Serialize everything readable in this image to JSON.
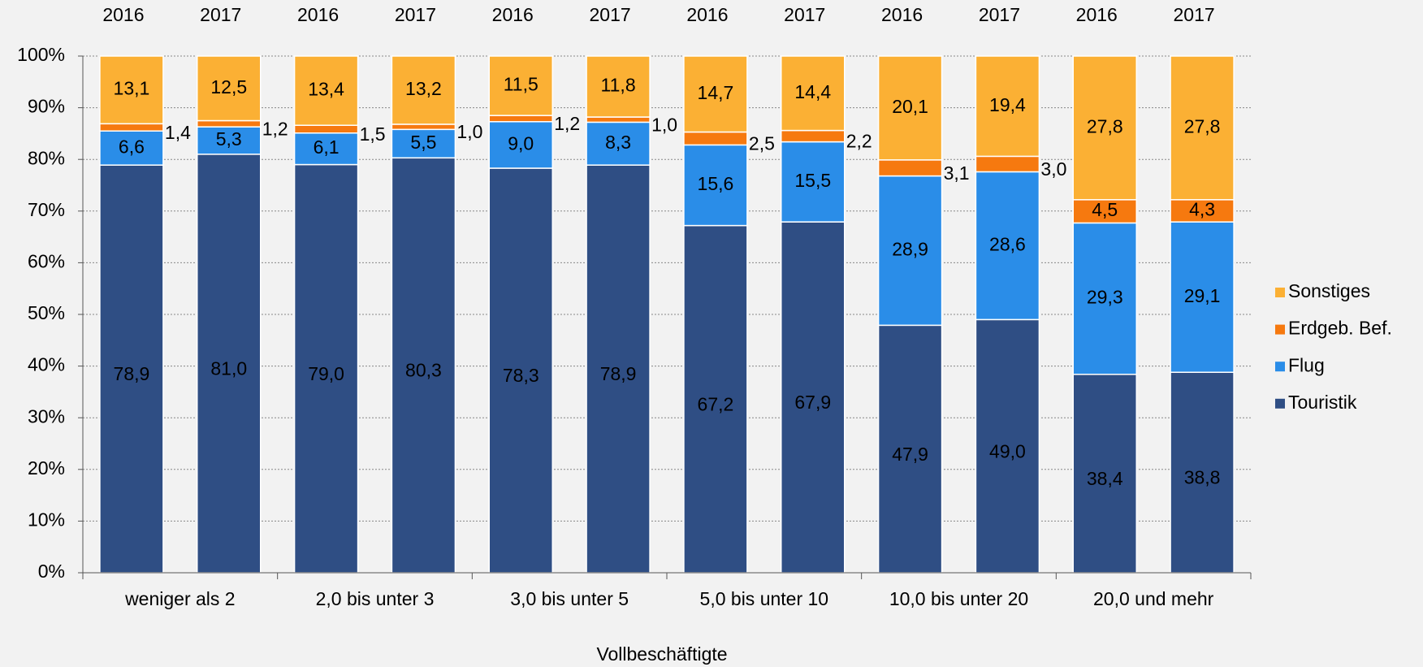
{
  "chart_data": {
    "type": "stacked_bar",
    "x_label": "Vollbeschäftigte",
    "categories": [
      "2016",
      "2017",
      "2016",
      "2017",
      "2016",
      "2017",
      "2016",
      "2017",
      "2016",
      "2017",
      "2016",
      "2017"
    ],
    "groups": [
      "weniger als 2",
      "2,0 bis unter 3",
      "3,0 bis unter 5",
      "5,0 bis unter 10",
      "10,0 bis unter 20",
      "20,0 und mehr"
    ],
    "series": [
      {
        "name": "Touristik",
        "color": "#2f4e84",
        "values": [
          78.9,
          81.0,
          79.0,
          80.3,
          78.3,
          78.9,
          67.2,
          67.9,
          47.9,
          49.0,
          38.4,
          38.8
        ],
        "value_labels": [
          "78,9",
          "81,0",
          "79,0",
          "80,3",
          "78,3",
          "78,9",
          "67,2",
          "67,9",
          "47,9",
          "49,0",
          "38,4",
          "38,8"
        ]
      },
      {
        "name": "Flug",
        "color": "#2a8de8",
        "values": [
          6.6,
          5.3,
          6.1,
          5.5,
          9.0,
          8.3,
          15.6,
          15.5,
          28.9,
          28.6,
          29.3,
          29.1
        ],
        "value_labels": [
          "6,6",
          "5,3",
          "6,1",
          "5,5",
          "9,0",
          "8,3",
          "15,6",
          "15,5",
          "28,9",
          "28,6",
          "29,3",
          "29,1"
        ]
      },
      {
        "name": "Erdgeb. Bef.",
        "color": "#f6790f",
        "values": [
          1.4,
          1.2,
          1.5,
          1.0,
          1.2,
          1.0,
          2.5,
          2.2,
          3.1,
          3.0,
          4.5,
          4.3
        ],
        "value_labels": [
          "1,4",
          "1,2",
          "1,5",
          "1,0",
          "1,2",
          "1,0",
          "2,5",
          "2,2",
          "3,1",
          "3,0",
          "4,5",
          "4,3"
        ]
      },
      {
        "name": "Sonstiges",
        "color": "#fbb034",
        "values": [
          13.1,
          12.5,
          13.4,
          13.2,
          11.5,
          11.8,
          14.7,
          14.4,
          20.1,
          19.4,
          27.8,
          27.8
        ],
        "value_labels": [
          "13,1",
          "12,5",
          "13,4",
          "13,2",
          "11,5",
          "11,8",
          "14,7",
          "14,4",
          "20,1",
          "19,4",
          "27,8",
          "27,8"
        ]
      }
    ],
    "ylim": [
      0,
      100
    ],
    "yticks": [
      {
        "value": 0,
        "label": "0%"
      },
      {
        "value": 10,
        "label": "10%"
      },
      {
        "value": 20,
        "label": "20%"
      },
      {
        "value": 30,
        "label": "30%"
      },
      {
        "value": 40,
        "label": "40%"
      },
      {
        "value": 50,
        "label": "50%"
      },
      {
        "value": 60,
        "label": "60%"
      },
      {
        "value": 70,
        "label": "70%"
      },
      {
        "value": 80,
        "label": "80%"
      },
      {
        "value": 90,
        "label": "90%"
      },
      {
        "value": 100,
        "label": "100%"
      }
    ],
    "grid": true,
    "legend": "right"
  }
}
